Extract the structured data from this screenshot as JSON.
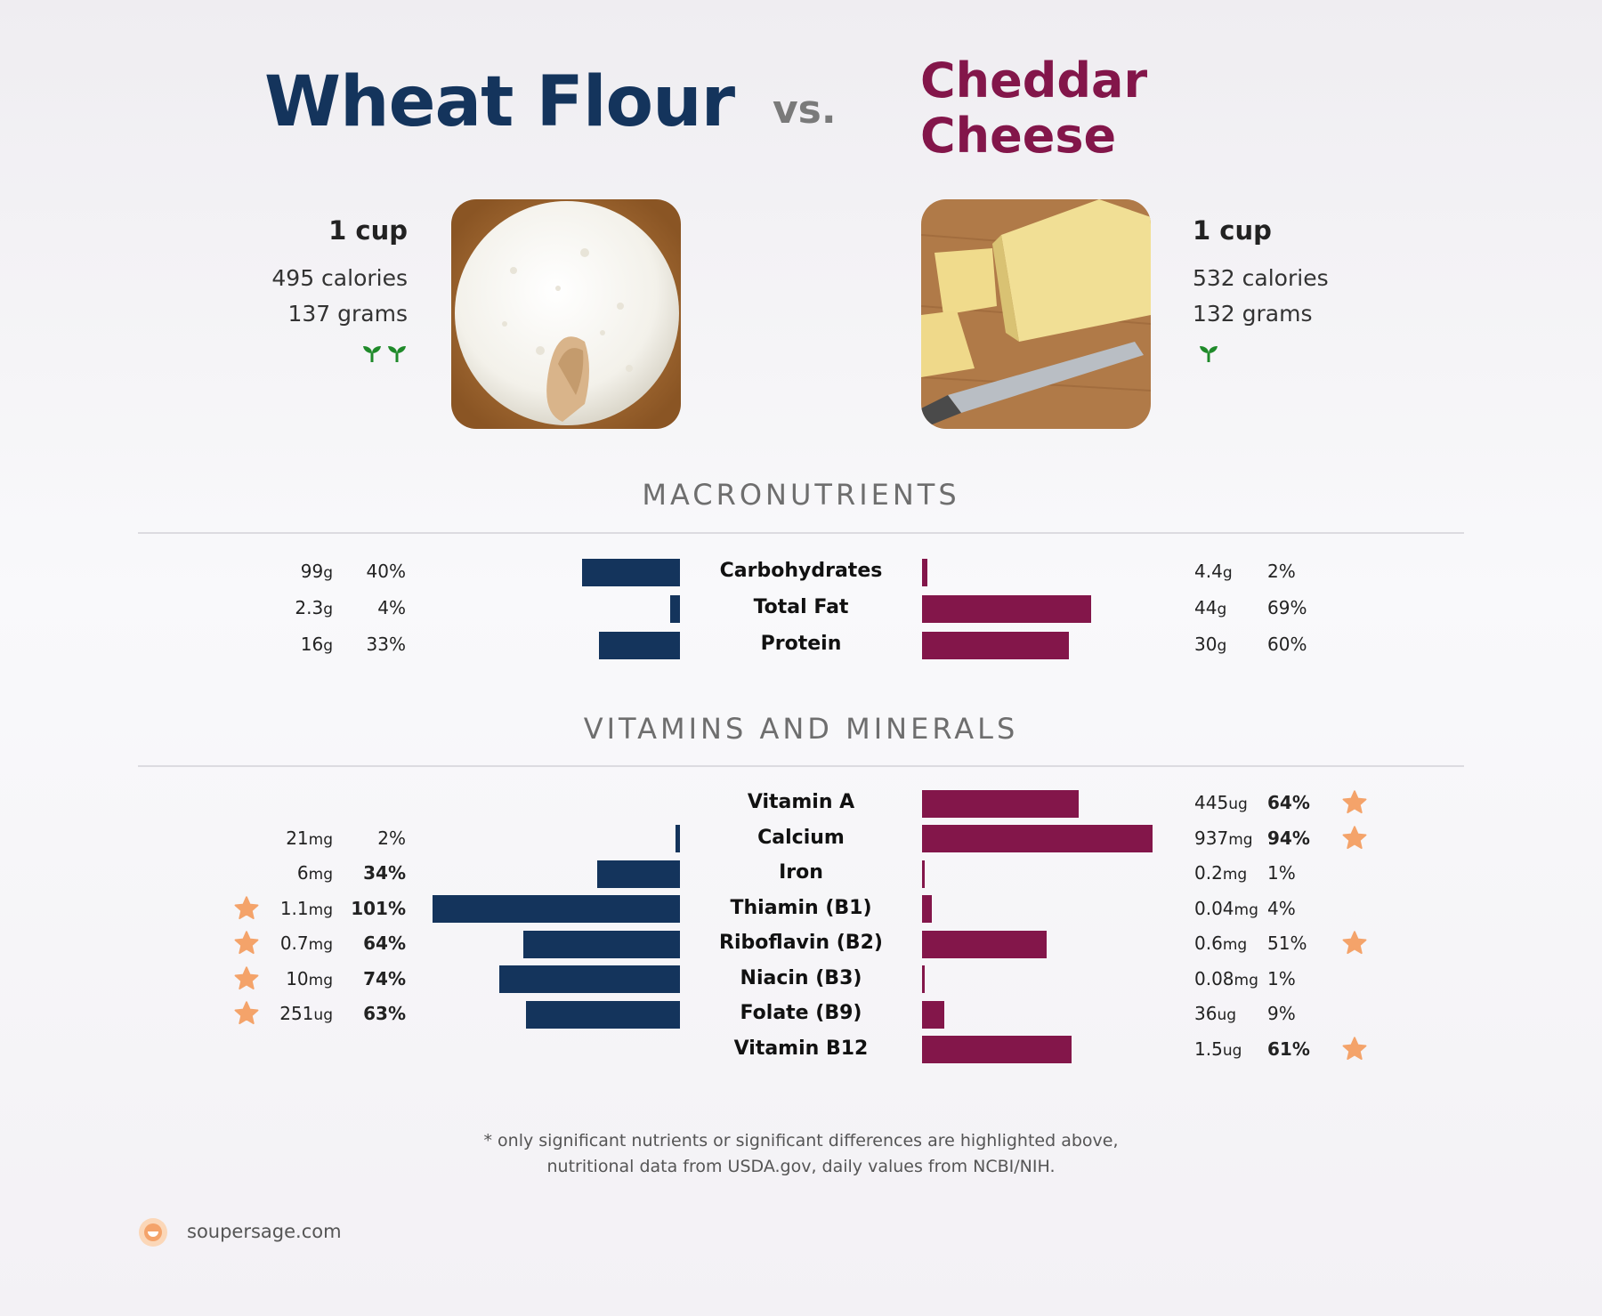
{
  "header": {
    "left_title": "Wheat Flour",
    "vs": "vs.",
    "right_title": "Cheddar Cheese"
  },
  "left_item": {
    "serving": "1 cup",
    "calories": "495 calories",
    "grams": "137 grams",
    "sprouts": 2,
    "image": "wheat-flour-photo"
  },
  "right_item": {
    "serving": "1 cup",
    "calories": "532 calories",
    "grams": "132 grams",
    "sprouts": 1,
    "image": "cheddar-cheese-photo"
  },
  "sections": {
    "macros_title": "MACRONUTRIENTS",
    "vitamins_title": "VITAMINS AND MINERALS"
  },
  "colors": {
    "left": "#14345c",
    "right": "#83164a",
    "star": "#f4a36a",
    "sprout": "#1f8a2a"
  },
  "chart_data": [
    {
      "type": "bar",
      "title": "MACRONUTRIENTS",
      "categories": [
        "Carbohydrates",
        "Total Fat",
        "Protein"
      ],
      "series": [
        {
          "name": "Wheat Flour",
          "values": [
            40,
            4,
            33
          ],
          "amounts": [
            {
              "num": "99",
              "unit": "g"
            },
            {
              "num": "2.3",
              "unit": "g"
            },
            {
              "num": "16",
              "unit": "g"
            }
          ],
          "pct_labels": [
            "40%",
            "4%",
            "33%"
          ],
          "bold": [
            false,
            false,
            false
          ],
          "stars": [
            false,
            false,
            false
          ]
        },
        {
          "name": "Cheddar Cheese",
          "values": [
            2,
            69,
            60
          ],
          "amounts": [
            {
              "num": "4.4",
              "unit": "g"
            },
            {
              "num": "44",
              "unit": "g"
            },
            {
              "num": "30",
              "unit": "g"
            }
          ],
          "pct_labels": [
            "2%",
            "69%",
            "60%"
          ],
          "bold": [
            false,
            false,
            false
          ],
          "stars": [
            false,
            false,
            false
          ]
        }
      ]
    },
    {
      "type": "bar",
      "title": "VITAMINS AND MINERALS",
      "categories": [
        "Vitamin A",
        "Calcium",
        "Iron",
        "Thiamin (B1)",
        "Riboflavin (B2)",
        "Niacin (B3)",
        "Folate (B9)",
        "Vitamin B12"
      ],
      "series": [
        {
          "name": "Wheat Flour",
          "values": [
            null,
            2,
            34,
            101,
            64,
            74,
            63,
            null
          ],
          "amounts": [
            null,
            {
              "num": "21",
              "unit": "mg"
            },
            {
              "num": "6",
              "unit": "mg"
            },
            {
              "num": "1.1",
              "unit": "mg"
            },
            {
              "num": "0.7",
              "unit": "mg"
            },
            {
              "num": "10",
              "unit": "mg"
            },
            {
              "num": "251",
              "unit": "ug"
            },
            null
          ],
          "pct_labels": [
            null,
            "2%",
            "34%",
            "101%",
            "64%",
            "74%",
            "63%",
            null
          ],
          "bold": [
            false,
            false,
            true,
            true,
            true,
            true,
            true,
            false
          ],
          "stars": [
            false,
            false,
            false,
            true,
            true,
            true,
            true,
            false
          ]
        },
        {
          "name": "Cheddar Cheese",
          "values": [
            64,
            94,
            1,
            4,
            51,
            1,
            9,
            61
          ],
          "amounts": [
            {
              "num": "445",
              "unit": "ug"
            },
            {
              "num": "937",
              "unit": "mg"
            },
            {
              "num": "0.2",
              "unit": "mg"
            },
            {
              "num": "0.04",
              "unit": "mg"
            },
            {
              "num": "0.6",
              "unit": "mg"
            },
            {
              "num": "0.08",
              "unit": "mg"
            },
            {
              "num": "36",
              "unit": "ug"
            },
            {
              "num": "1.5",
              "unit": "ug"
            }
          ],
          "pct_labels": [
            "64%",
            "94%",
            "1%",
            "4%",
            "51%",
            "1%",
            "9%",
            "61%"
          ],
          "bold": [
            true,
            true,
            false,
            false,
            false,
            false,
            false,
            true
          ],
          "stars": [
            true,
            true,
            false,
            false,
            true,
            false,
            false,
            true
          ]
        }
      ]
    }
  ],
  "footer": {
    "note_line1": "* only significant nutrients or significant differences are highlighted above,",
    "note_line2": "nutritional data from USDA.gov, daily values from NCBI/NIH.",
    "brand": "soupersage.com"
  }
}
